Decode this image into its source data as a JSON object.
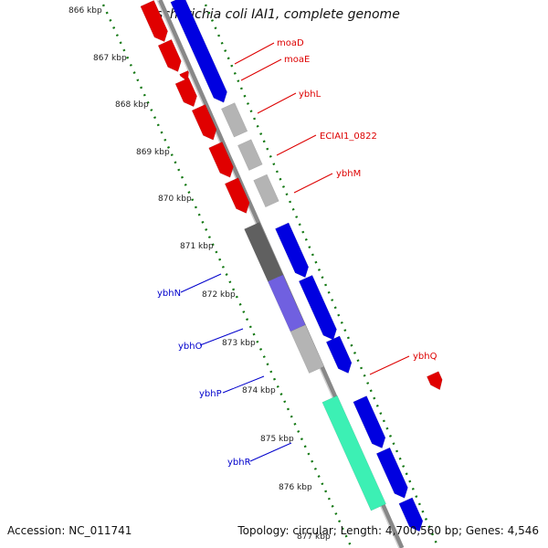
{
  "title": "Escherichia coli IAI1, complete genome",
  "footer": {
    "accession": "Accession: NC_011741",
    "summary": "Topology: circular; Length: 4,700,560 bp; Genes: 4,546"
  },
  "colors": {
    "forward_gene": "#e00000",
    "reverse_gene": "#0000e0",
    "rna": "#3cf0b4",
    "pseudo": "#b4b4b4",
    "dark_gray": "#606060",
    "ruler_dots": "#117711",
    "label_red": "#dd0000",
    "label_blue": "#0000cc"
  },
  "ticks": [
    "866 kbp",
    "867 kbp",
    "868 kbp",
    "869 kbp",
    "870 kbp",
    "871 kbp",
    "872 kbp",
    "873 kbp",
    "874 kbp",
    "875 kbp",
    "876 kbp",
    "877 kbp"
  ],
  "gene_labels": {
    "red": [
      "moaD",
      "moaE",
      "ybhL",
      "ECIAI1_0822",
      "ybhM",
      "ybhQ"
    ],
    "blue": [
      "ybhN",
      "ybhO",
      "ybhP",
      "ybhR"
    ]
  }
}
